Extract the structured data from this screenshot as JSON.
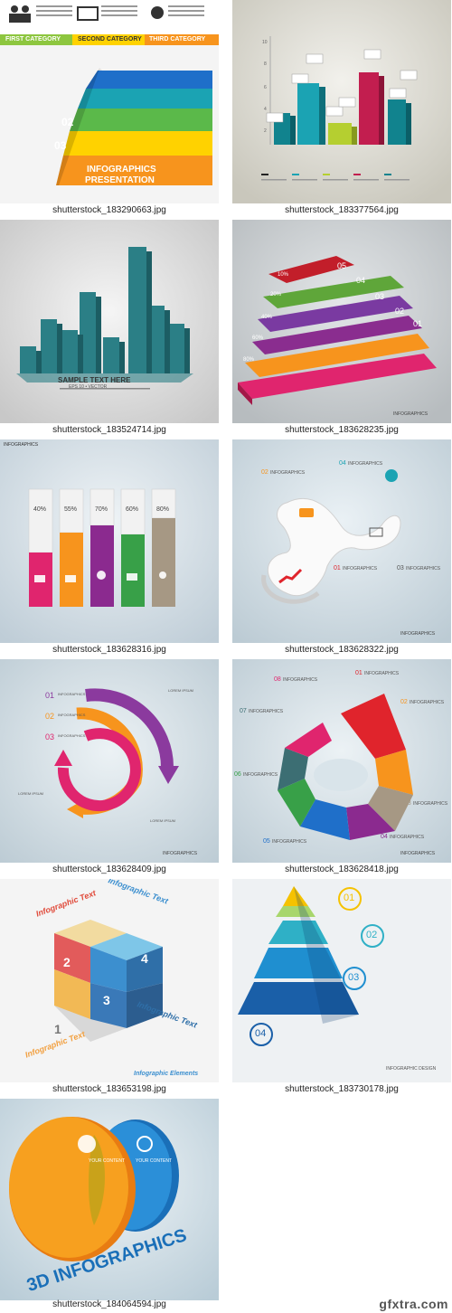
{
  "tiles": [
    {
      "caption": "shutterstock_183290663.jpg",
      "cat1": "FIRST CATEGORY",
      "cat2": "SECOND CATEGORY",
      "cat3": "THIRD CATEGORY",
      "levels": [
        "01",
        "02",
        "03"
      ],
      "title1": "INFOGRAPHICS",
      "title2": "PRESENTATION"
    },
    {
      "caption": "shutterstock_183377564.jpg",
      "yticks": [
        "10",
        "8",
        "6",
        "4",
        "2"
      ]
    },
    {
      "caption": "shutterstock_183524714.jpg",
      "sample": "SAMPLE TEXT HERE",
      "eps": "EPS 10 • VECTOR"
    },
    {
      "caption": "shutterstock_183628235.jpg",
      "steps": [
        "05",
        "04",
        "03",
        "02",
        "01"
      ],
      "pcts": [
        "10%",
        "20%",
        "40%",
        "60%",
        "80%"
      ],
      "brand": "INFOGRAPHICS"
    },
    {
      "caption": "shutterstock_183628316.jpg",
      "brand": "INFOGRAPHICS",
      "pcts": [
        "40%",
        "55%",
        "70%",
        "60%",
        "80%"
      ]
    },
    {
      "caption": "shutterstock_183628322.jpg",
      "labels": [
        "02",
        "04",
        "01",
        "03"
      ],
      "word": "INFOGRAPHICS",
      "brand": "INFOGRAPHICS"
    },
    {
      "caption": "shutterstock_183628409.jpg",
      "labels": [
        "01",
        "02",
        "03"
      ],
      "word": "INFOGRAPHICS",
      "lorem": "LOREM IPSUM",
      "brand": "INFOGRAPHICS"
    },
    {
      "caption": "shutterstock_183628418.jpg",
      "labels": [
        "08",
        "07",
        "06",
        "05",
        "01",
        "02",
        "03",
        "04"
      ],
      "word": "INFOGRAPHICS",
      "brand": "INFOGRAPHICS"
    },
    {
      "caption": "shutterstock_183653198.jpg",
      "text": "Infographic Text",
      "nums": [
        "1",
        "2",
        "3",
        "4"
      ],
      "footer": "Infographic Elements"
    },
    {
      "caption": "shutterstock_183730178.jpg",
      "labels": [
        "01",
        "02",
        "03",
        "04"
      ],
      "brand": "INFOGRAPHIC DESIGN"
    },
    {
      "caption": "shutterstock_184064594.jpg",
      "title": "3D INFOGRAPHICS",
      "content": "YOUR CONTENT"
    }
  ],
  "watermark": "gfxtra.com",
  "colors": {
    "green": "#8dc63f",
    "yellow": "#ffd200",
    "orange": "#f7941d",
    "teal": "#1ba3b3",
    "red": "#e0242c",
    "purple": "#8b3a9e",
    "pink": "#e0256e"
  }
}
